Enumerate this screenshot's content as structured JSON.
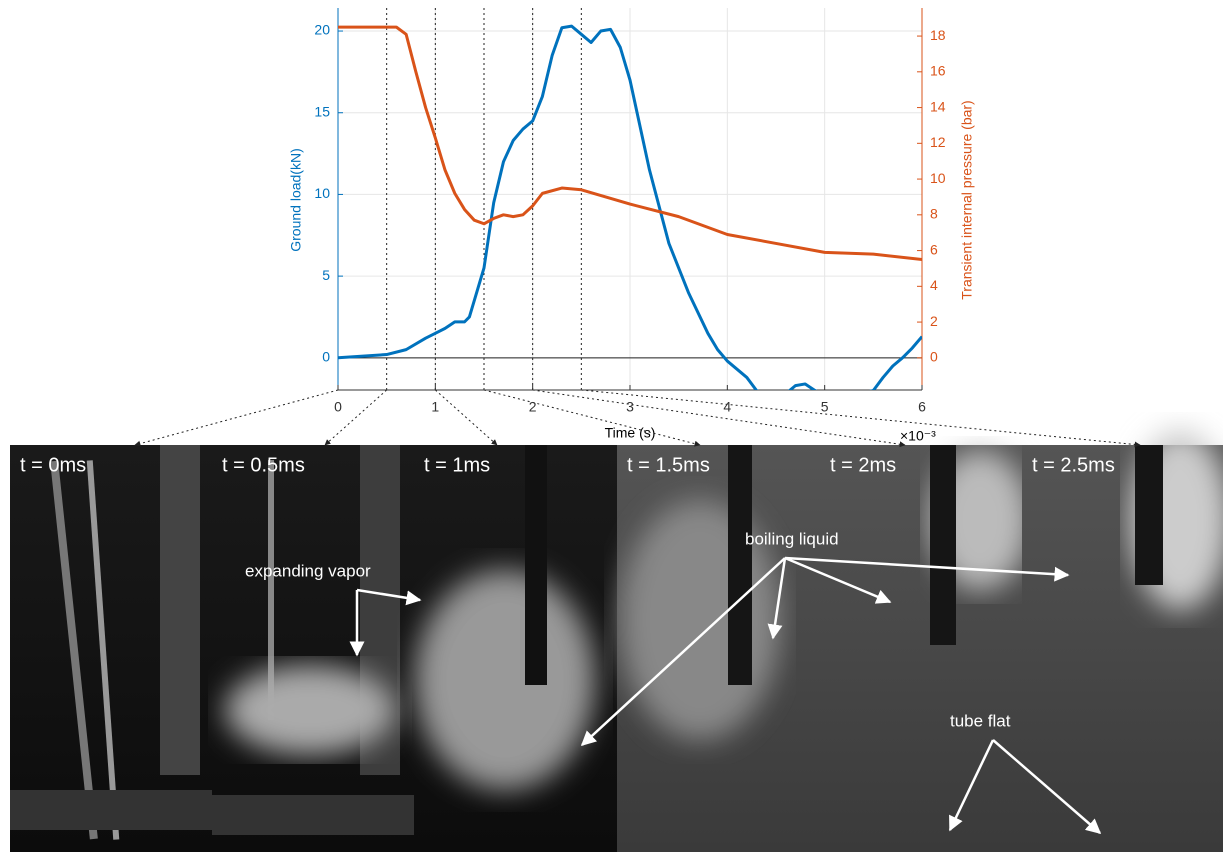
{
  "chart_data": {
    "type": "line",
    "xlabel": "Time (s)",
    "x_exponent": "×10⁻³",
    "ylabel": "Ground load(kN)",
    "y2label": "Transient internal pressure (bar)",
    "xlim": [
      0,
      6
    ],
    "xticks": [
      0,
      1,
      2,
      3,
      4,
      5,
      6
    ],
    "ylim": [
      -1.97,
      21.41
    ],
    "yticks": [
      0,
      5,
      10,
      15,
      20
    ],
    "y2lim": [
      -1.8,
      19.57
    ],
    "y2ticks": [
      0,
      2,
      4,
      6,
      8,
      10,
      12,
      14,
      16,
      18
    ],
    "grid": true,
    "markers": [
      0,
      0.5,
      1,
      1.5,
      2,
      2.5
    ],
    "series": [
      {
        "name": "Ground load(kN)",
        "color": "#0072bd",
        "x": [
          0,
          0.5,
          0.7,
          0.9,
          1.0,
          1.1,
          1.2,
          1.3,
          1.35,
          1.5,
          1.6,
          1.7,
          1.8,
          1.9,
          2.0,
          2.1,
          2.2,
          2.3,
          2.4,
          2.5,
          2.6,
          2.7,
          2.8,
          2.9,
          3.0,
          3.2,
          3.4,
          3.6,
          3.8,
          3.9,
          4.0,
          4.2,
          4.3,
          4.4,
          4.6,
          4.7,
          4.8,
          4.9,
          5.0,
          5.3,
          5.5,
          5.6,
          5.7,
          5.8,
          5.9,
          6.0
        ],
        "values": [
          0,
          0.2,
          0.5,
          1.2,
          1.5,
          1.8,
          2.2,
          2.2,
          2.5,
          5.5,
          9.5,
          12,
          13.3,
          14,
          14.5,
          16,
          18.5,
          20.2,
          20.3,
          19.8,
          19.3,
          20,
          20.1,
          19,
          17,
          11.5,
          7,
          4,
          1.5,
          0.5,
          -0.2,
          -1.2,
          -2,
          -2.3,
          -2.2,
          -1.7,
          -1.6,
          -2.0,
          -2.3,
          -2.3,
          -2.0,
          -1.2,
          -0.5,
          0,
          0.6,
          1.3
        ]
      },
      {
        "name": "Transient internal pressure (bar)",
        "color": "#d95319",
        "axis": "y2",
        "x": [
          0,
          0.3,
          0.6,
          0.7,
          0.8,
          0.9,
          1.0,
          1.1,
          1.2,
          1.3,
          1.4,
          1.5,
          1.6,
          1.7,
          1.8,
          1.9,
          2.0,
          2.1,
          2.3,
          2.5,
          3.0,
          3.5,
          4.0,
          4.5,
          5.0,
          5.5,
          6.0
        ],
        "values": [
          18.5,
          18.5,
          18.5,
          18.1,
          16,
          14,
          12.3,
          10.5,
          9.2,
          8.3,
          7.7,
          7.5,
          7.8,
          8.0,
          7.9,
          8.0,
          8.5,
          9.2,
          9.5,
          9.4,
          8.6,
          7.9,
          6.9,
          6.4,
          5.9,
          5.8,
          5.5
        ]
      }
    ]
  },
  "frames": [
    "t = 0ms",
    "t = 0.5ms",
    "t = 1ms",
    "t = 1.5ms",
    "t = 2ms",
    "t = 2.5ms"
  ],
  "annotations": [
    "expanding vapor",
    "boiling liquid",
    "tube flat"
  ]
}
